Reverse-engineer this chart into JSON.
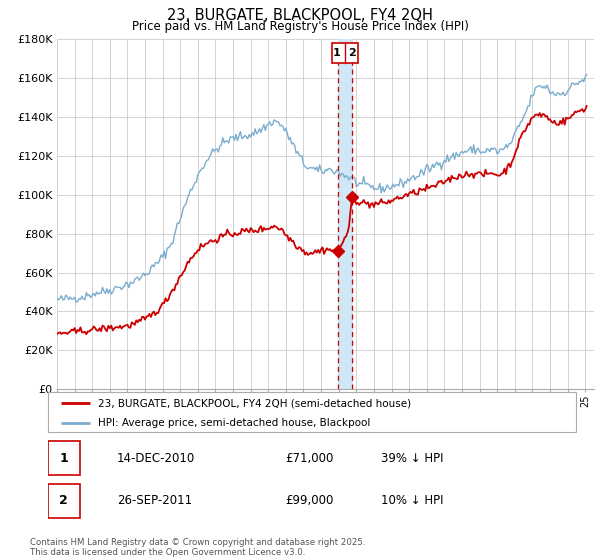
{
  "title": "23, BURGATE, BLACKPOOL, FY4 2QH",
  "subtitle": "Price paid vs. HM Land Registry's House Price Index (HPI)",
  "ylim": [
    0,
    180000
  ],
  "yticks": [
    0,
    20000,
    40000,
    60000,
    80000,
    100000,
    120000,
    140000,
    160000,
    180000
  ],
  "ytick_labels": [
    "£0",
    "£20K",
    "£40K",
    "£60K",
    "£80K",
    "£100K",
    "£120K",
    "£140K",
    "£160K",
    "£180K"
  ],
  "xlim_start": 1995.0,
  "xlim_end": 2025.5,
  "line1_color": "#cc0000",
  "line2_color": "#7aadcf",
  "vline_color": "#cc0000",
  "vband_color": "#d0e8f5",
  "legend_line1": "23, BURGATE, BLACKPOOL, FY4 2QH (semi-detached house)",
  "legend_line2": "HPI: Average price, semi-detached house, Blackpool",
  "annotation1_date": "14-DEC-2010",
  "annotation1_price": "£71,000",
  "annotation1_hpi": "39% ↓ HPI",
  "annotation2_date": "26-SEP-2011",
  "annotation2_price": "£99,000",
  "annotation2_hpi": "10% ↓ HPI",
  "copyright": "Contains HM Land Registry data © Crown copyright and database right 2025.\nThis data is licensed under the Open Government Licence v3.0.",
  "vline1_x": 2010.95,
  "vline2_x": 2011.73,
  "marker1_y": 71000,
  "marker2_y": 99000,
  "background_color": "#ffffff",
  "grid_color": "#cccccc"
}
